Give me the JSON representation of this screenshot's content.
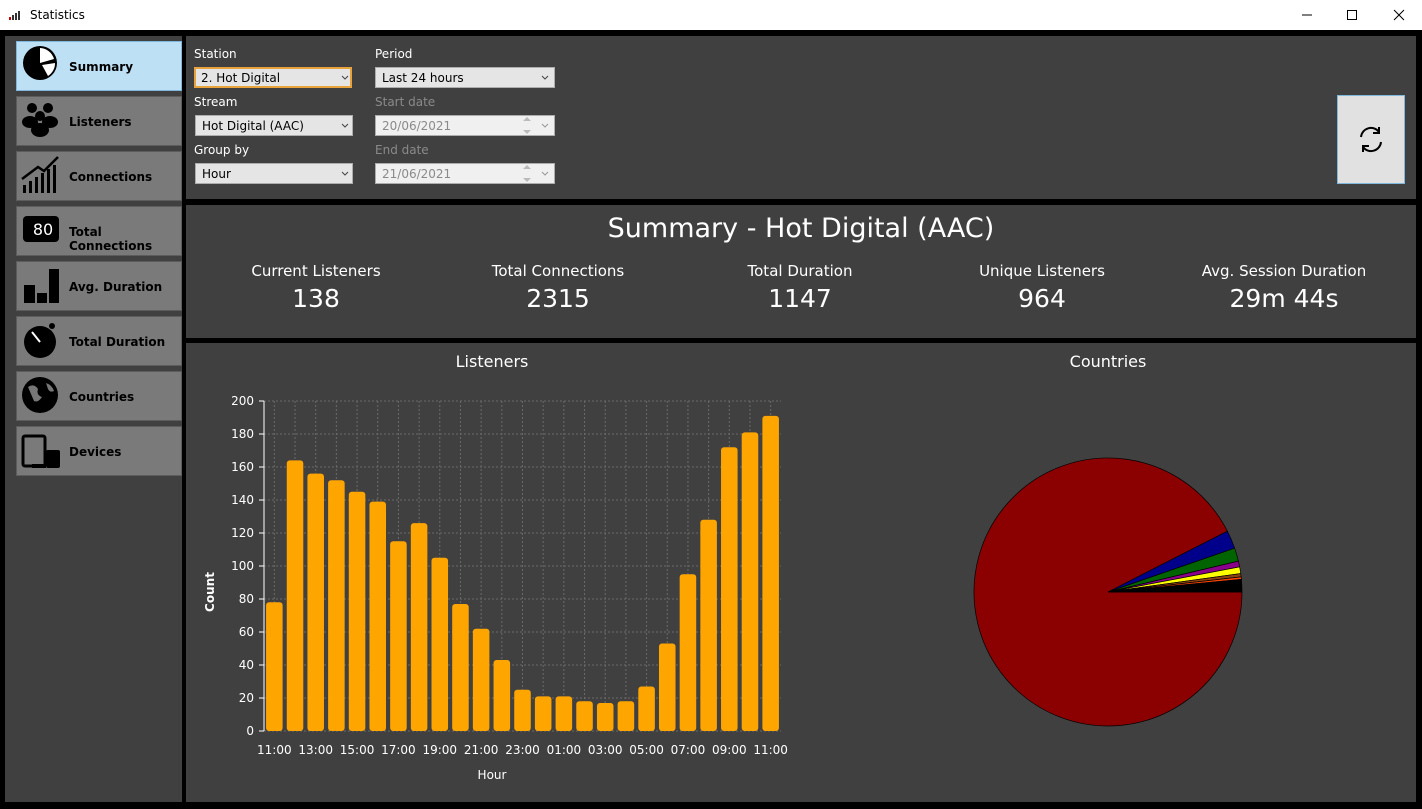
{
  "window": {
    "title": "Statistics"
  },
  "sidebar": {
    "items": [
      "Summary",
      "Listeners",
      "Connections",
      "Total Connections",
      "Avg. Duration",
      "Total Duration",
      "Countries",
      "Devices"
    ],
    "total_connections_icon": "80"
  },
  "filters": {
    "station": {
      "label": "Station",
      "value": "2. Hot Digital"
    },
    "period": {
      "label": "Period",
      "value": "Last 24 hours"
    },
    "stream": {
      "label": "Stream",
      "value": "Hot Digital (AAC)"
    },
    "start_date": {
      "label": "Start date",
      "value": "20/06/2021"
    },
    "group_by": {
      "label": "Group by",
      "value": "Hour"
    },
    "end_date": {
      "label": "End date",
      "value": "21/06/2021"
    }
  },
  "summary": {
    "title": "Summary - Hot Digital (AAC)",
    "stats": [
      {
        "label": "Current Listeners",
        "value": "138"
      },
      {
        "label": "Total Connections",
        "value": "2315"
      },
      {
        "label": "Total Duration",
        "value": "1147"
      },
      {
        "label": "Unique Listeners",
        "value": "964"
      },
      {
        "label": "Avg. Session Duration",
        "value": "29m 44s"
      }
    ]
  },
  "chart_data": [
    {
      "type": "bar",
      "title": "Listeners",
      "x_label": "Hour",
      "y_label": "Count",
      "color": "#ffa500",
      "grid": true,
      "categories": [
        "11:00",
        null,
        "13:00",
        null,
        "15:00",
        null,
        "17:00",
        null,
        "19:00",
        null,
        "21:00",
        null,
        "23:00",
        null,
        "01:00",
        null,
        "03:00",
        null,
        "05:00",
        null,
        "07:00",
        null,
        "09:00",
        null,
        "11:00"
      ],
      "values": [
        78,
        164,
        156,
        152,
        145,
        139,
        115,
        126,
        105,
        77,
        62,
        43,
        25,
        21,
        21,
        18,
        17,
        18,
        27,
        53,
        95,
        128,
        172,
        181,
        191
      ],
      "ylim": [
        0,
        200
      ],
      "yticks": [
        0,
        20,
        40,
        60,
        80,
        100,
        120,
        140,
        160,
        180,
        200
      ]
    },
    {
      "type": "pie",
      "title": "Countries",
      "values": [
        92.5,
        2.2,
        1.6,
        0.7,
        0.8,
        0.4,
        0.3,
        1.5
      ],
      "colors": [
        "#8b0000",
        "#00008b",
        "#006400",
        "#8b008b",
        "#ffff00",
        "#8b4513",
        "#ff4500",
        "#000000"
      ]
    }
  ]
}
